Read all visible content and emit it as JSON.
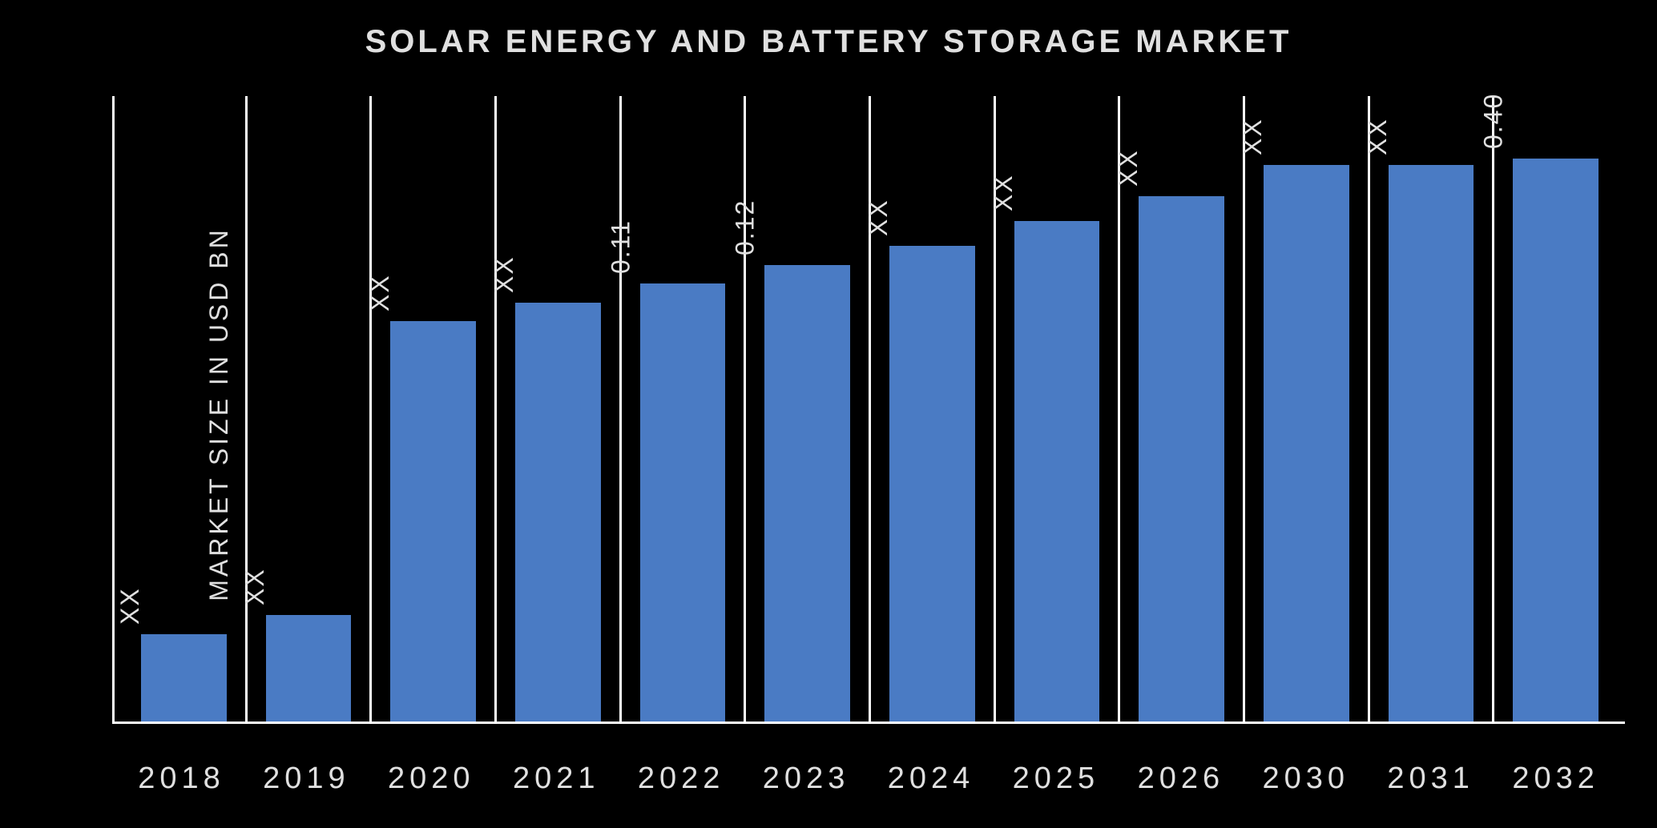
{
  "chart": {
    "type": "bar",
    "title": "SOLAR ENERGY AND BATTERY STORAGE MARKET",
    "title_fontsize": 40,
    "title_color": "#e0e0e0",
    "ylabel": "MARKET SIZE IN USD BN",
    "ylabel_fontsize": 32,
    "ylabel_color": "#e0e0e0",
    "background_color": "#000000",
    "axis_color": "#ffffff",
    "separator_color": "#ffffff",
    "bar_color": "#4a7bc4",
    "data_label_fontsize": 32,
    "data_label_color": "#e0e0e0",
    "x_label_fontsize": 38,
    "x_label_color": "#e0e0e0",
    "bar_width_pct": 70,
    "categories": [
      "2018",
      "2019",
      "2020",
      "2021",
      "2022",
      "2023",
      "2024",
      "2025",
      "2026",
      "2030",
      "2031",
      "2032"
    ],
    "value_labels": [
      "XX",
      "XX",
      "XX",
      "XX",
      "0.11",
      "0.12",
      "XX",
      "XX",
      "XX",
      "XX",
      "XX",
      "0.40"
    ],
    "bar_heights_pct": [
      14,
      17,
      64,
      67,
      70,
      73,
      76,
      80,
      84,
      89,
      89,
      90
    ]
  }
}
